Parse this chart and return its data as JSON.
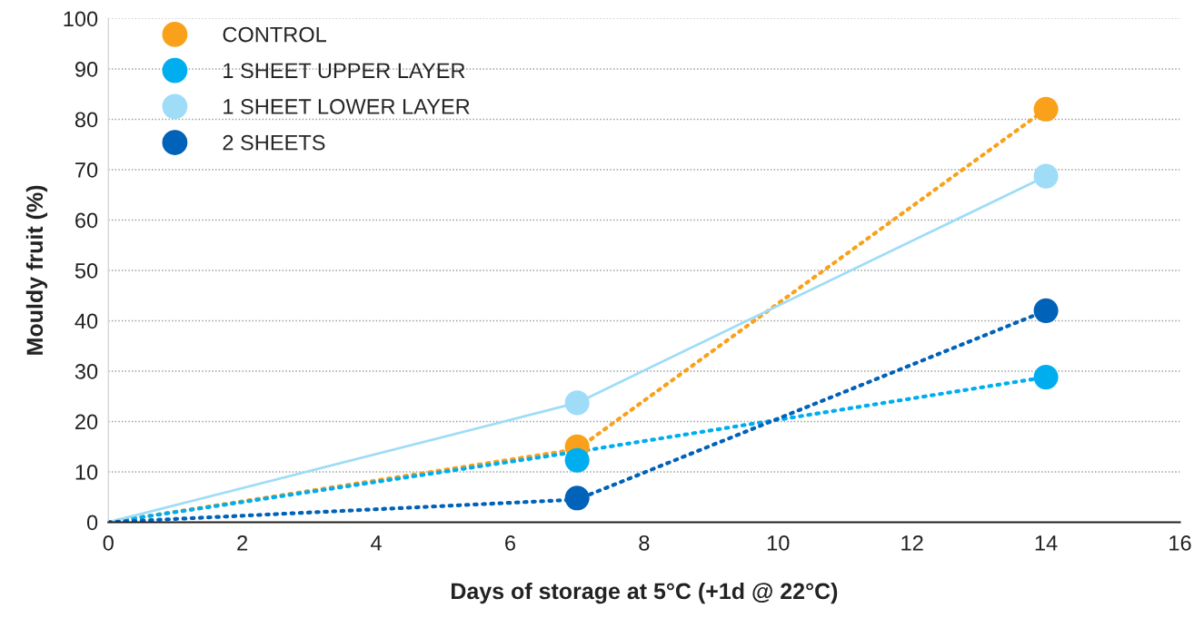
{
  "chart_data": {
    "type": "line",
    "xlabel": "Days of storage at 5°C (+1d @ 22°C)",
    "ylabel": "Mouldy fruit (%)",
    "xlim": [
      0,
      16
    ],
    "xticks": [
      0,
      2,
      4,
      6,
      8,
      10,
      12,
      14,
      16
    ],
    "ylim": [
      0,
      100
    ],
    "yticks": [
      0,
      10,
      20,
      30,
      40,
      50,
      60,
      70,
      80,
      90,
      100
    ],
    "grid": "y",
    "legend": "top left",
    "series": [
      {
        "color": "#f9a11b",
        "line_style": "dotted",
        "x": [
          0,
          7,
          14
        ],
        "values": [
          0,
          14.5,
          82
        ]
      },
      {
        "color": "#00aeef",
        "line_style": "dotted",
        "x": [
          0,
          7,
          14
        ],
        "values": [
          0,
          14,
          28.8
        ]
      },
      {
        "color": "#9fdcf7",
        "line_style": "solid",
        "x": [
          0,
          7,
          14
        ],
        "values": [
          0,
          23.7,
          68.7
        ]
      },
      {
        "color": "#0062b8",
        "line_style": "dotted",
        "x": [
          0,
          7,
          14
        ],
        "values": [
          0,
          4.5,
          42
        ]
      },
      {
        "type": "scatter",
        "name": "CONTROL",
        "color": "#f9a11b",
        "marker": "circle",
        "x": [
          7,
          14
        ],
        "values": [
          15,
          82
        ]
      },
      {
        "type": "scatter",
        "name": "1 SHEET UPPER LAYER",
        "color": "#00aeef",
        "marker": "circle",
        "x": [
          7,
          14
        ],
        "values": [
          12.3,
          28.8
        ]
      },
      {
        "type": "scatter",
        "name": "1 SHEET LOWER LAYER",
        "color": "#9fdcf7",
        "marker": "circle",
        "x": [
          7,
          14
        ],
        "values": [
          23.7,
          68.7
        ]
      },
      {
        "type": "scatter",
        "name": "2 SHEETS",
        "color": "#0062b8",
        "marker": "circle",
        "x": [
          7,
          14
        ],
        "values": [
          4.8,
          42
        ]
      }
    ]
  }
}
